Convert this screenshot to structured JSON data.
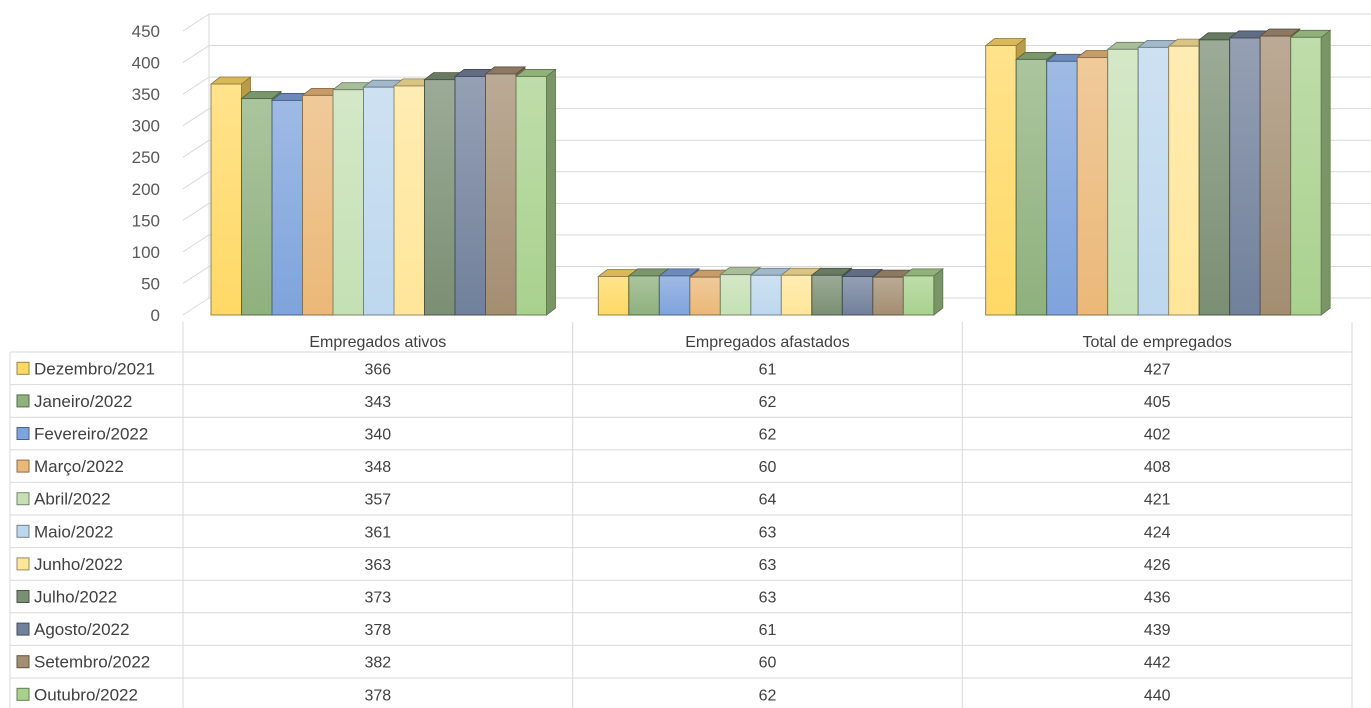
{
  "chart_data": {
    "type": "bar",
    "categories": [
      "Empregados ativos",
      "Empregados afastados",
      "Total de empregados"
    ],
    "series": [
      {
        "name": "Dezembro/2021",
        "values": [
          366,
          61,
          427
        ],
        "color": "#FFD966"
      },
      {
        "name": "Janeiro/2022",
        "values": [
          343,
          62,
          405
        ],
        "color": "#8FB17D"
      },
      {
        "name": "Fevereiro/2022",
        "values": [
          340,
          62,
          402
        ],
        "color": "#7FA3DC"
      },
      {
        "name": "Março/2022",
        "values": [
          348,
          60,
          408
        ],
        "color": "#EBB878"
      },
      {
        "name": "Abril/2022",
        "values": [
          357,
          64,
          421
        ],
        "color": "#C5E0B4"
      },
      {
        "name": "Maio/2022",
        "values": [
          361,
          63,
          424
        ],
        "color": "#BDD7EE"
      },
      {
        "name": "Junho/2022",
        "values": [
          363,
          63,
          426
        ],
        "color": "#FFE699"
      },
      {
        "name": "Julho/2022",
        "values": [
          373,
          63,
          436
        ],
        "color": "#7B8F74"
      },
      {
        "name": "Agosto/2022",
        "values": [
          378,
          61,
          439
        ],
        "color": "#71809B"
      },
      {
        "name": "Setembro/2022",
        "values": [
          382,
          60,
          442
        ],
        "color": "#A48E72"
      },
      {
        "name": "Outubro/2022",
        "values": [
          378,
          62,
          440
        ],
        "color": "#A9D18E"
      }
    ],
    "yticks": [
      "0",
      "50",
      "100",
      "150",
      "200",
      "250",
      "300",
      "350",
      "400",
      "450"
    ],
    "ylim": [
      0,
      450
    ],
    "grid": true,
    "data_table": true,
    "style": "3d-clustered-column"
  }
}
